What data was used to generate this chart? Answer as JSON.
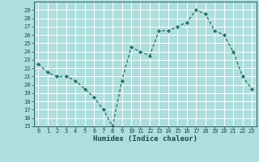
{
  "x": [
    0,
    1,
    2,
    3,
    4,
    5,
    6,
    7,
    8,
    9,
    10,
    11,
    12,
    13,
    14,
    15,
    16,
    17,
    18,
    19,
    20,
    21,
    22,
    23
  ],
  "y": [
    22.5,
    21.5,
    21.0,
    21.0,
    20.5,
    19.5,
    18.5,
    17.0,
    15.0,
    20.5,
    24.5,
    24.0,
    23.5,
    26.5,
    26.5,
    27.0,
    27.5,
    29.0,
    28.5,
    26.5,
    26.0,
    24.0,
    21.0,
    19.5
  ],
  "xlabel": "Humidex (Indice chaleur)",
  "xlim": [
    -0.5,
    23.5
  ],
  "ylim": [
    15,
    30
  ],
  "yticks": [
    15,
    16,
    17,
    18,
    19,
    20,
    21,
    22,
    23,
    24,
    25,
    26,
    27,
    28,
    29
  ],
  "xticks": [
    0,
    1,
    2,
    3,
    4,
    5,
    6,
    7,
    8,
    9,
    10,
    11,
    12,
    13,
    14,
    15,
    16,
    17,
    18,
    19,
    20,
    21,
    22,
    23
  ],
  "line_color": "#2a6e63",
  "marker": "D",
  "marker_size": 2.0,
  "bg_color": "#aedede",
  "grid_color": "#ffffff",
  "tick_label_color": "#1a4a4a",
  "xlabel_color": "#1a4a4a",
  "tick_fontsize": 5.0,
  "xlabel_fontsize": 6.5,
  "linewidth": 0.9
}
